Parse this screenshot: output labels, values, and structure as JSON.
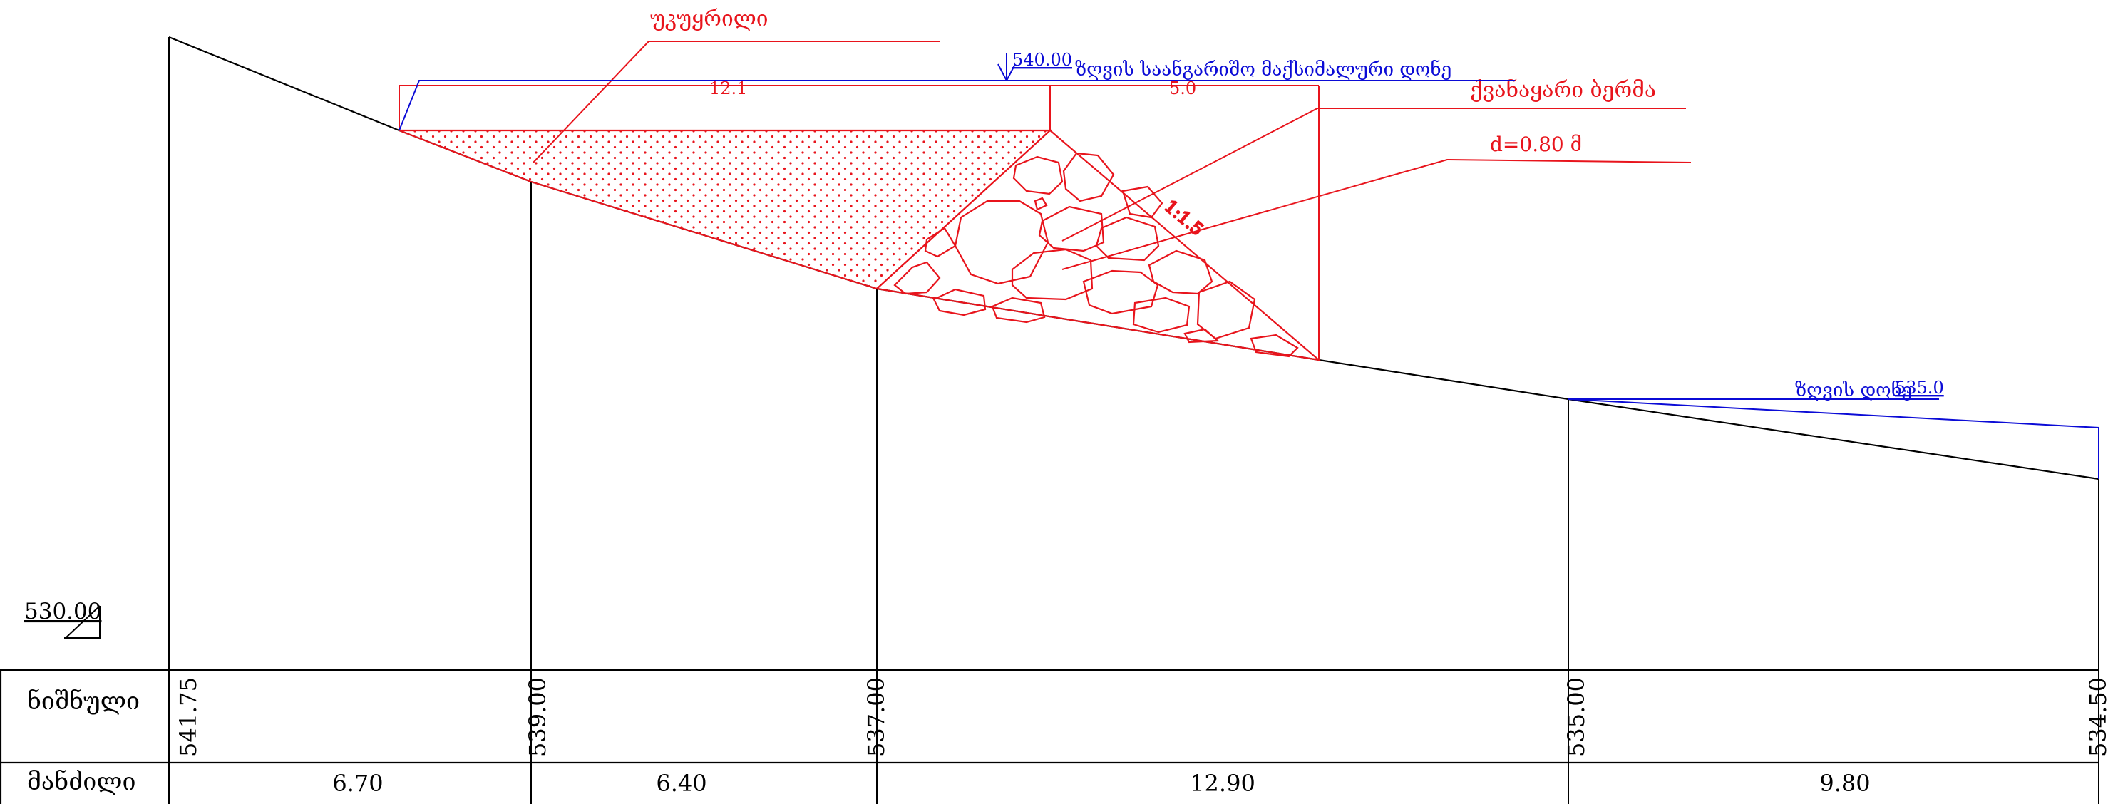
{
  "labels": {
    "fill_label": "უკუყრილი",
    "max_level_value": "540.00",
    "max_level_label": "ზღვის საანგარიშო მაქსიმალური დონე",
    "berm_label": "ქვანაყარი ბერმა",
    "thickness_label": "d=0.80 მ",
    "width_fill": "12.1",
    "width_berm": "5.0",
    "slope": "1:1.5",
    "sea_level_label": "ზღვის დონე",
    "sea_level_value": "535.0",
    "datum": "530.00"
  },
  "table": {
    "row_elevation_label": "ნიშნული",
    "row_distance_label": "მანძილი",
    "elevations": [
      "541.75",
      "539.00",
      "537.00",
      "535.00",
      "534.50"
    ],
    "distances": [
      "6.70",
      "6.40",
      "12.90",
      "9.80"
    ]
  },
  "colors": {
    "red": "#e8141c",
    "blue": "#0b0bd6",
    "black": "#000000"
  }
}
